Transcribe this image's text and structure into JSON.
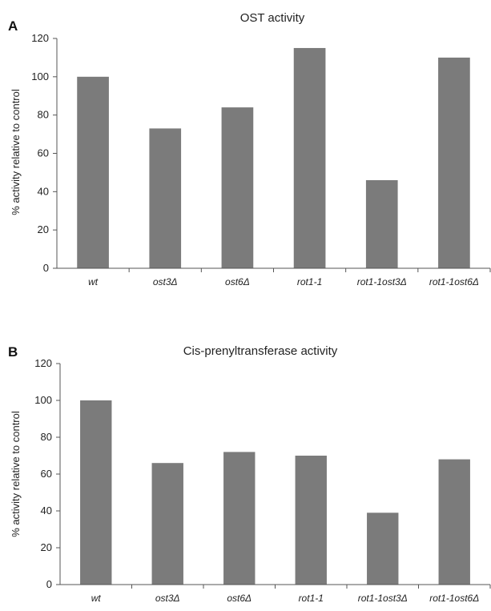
{
  "chart_data": [
    {
      "type": "bar",
      "panel": "A",
      "title": "OST activity",
      "ylabel": "% activity relative to control",
      "xlabel": "",
      "categories": [
        "wt",
        "ost3Δ",
        "ost6Δ",
        "rot1-1",
        "rot1-1ost3Δ",
        "rot1-1ost6Δ"
      ],
      "values": [
        100,
        73,
        84,
        115,
        46,
        110
      ],
      "ylim": [
        0,
        120
      ],
      "yticks": [
        0,
        20,
        40,
        60,
        80,
        100,
        120
      ],
      "bar_color": "#7b7b7b",
      "grid": false,
      "legend": "none"
    },
    {
      "type": "bar",
      "panel": "B",
      "title": "Cis-prenyltransferase activity",
      "ylabel": "% activity relative to control",
      "xlabel": "",
      "categories": [
        "wt",
        "ost3Δ",
        "ost6Δ",
        "rot1-1",
        "rot1-1ost3Δ",
        "rot1-1ost6Δ"
      ],
      "values": [
        100,
        66,
        72,
        70,
        39,
        68
      ],
      "ylim": [
        0,
        120
      ],
      "yticks": [
        0,
        20,
        40,
        60,
        80,
        100,
        120
      ],
      "bar_color": "#7b7b7b",
      "grid": false,
      "legend": "none"
    }
  ]
}
